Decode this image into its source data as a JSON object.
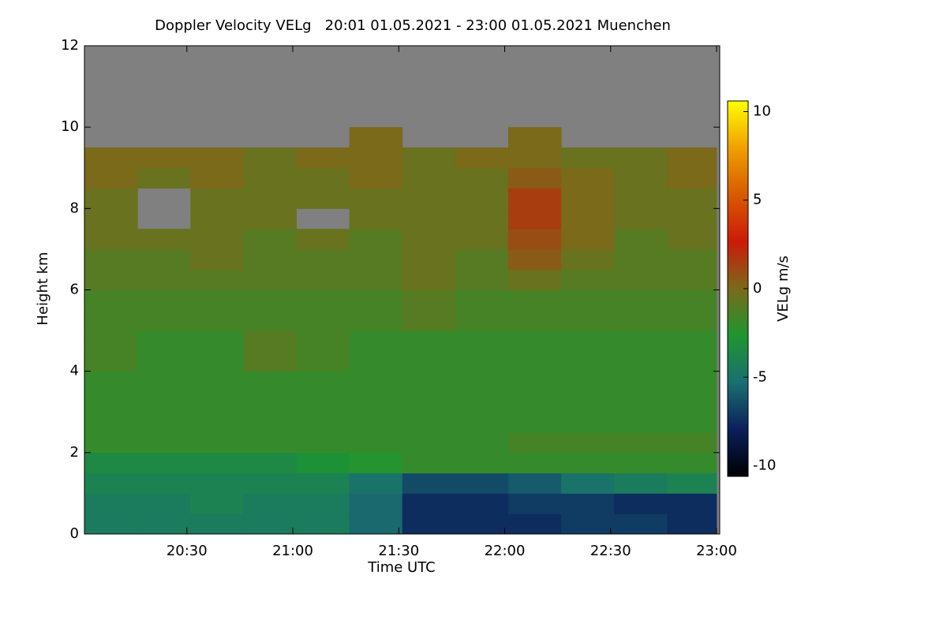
{
  "chart_data": {
    "type": "heatmap",
    "title": "Doppler Velocity VELg   20:01 01.05.2021 - 23:00 01.05.2021 Muenchen",
    "x_label": "Time UTC",
    "y_label": "Height km",
    "colorbar_label": "VELg m/s",
    "xlim": [
      1201,
      1380
    ],
    "xticks": [
      {
        "value": 1230,
        "label": "20:30"
      },
      {
        "value": 1260,
        "label": "21:00"
      },
      {
        "value": 1290,
        "label": "21:30"
      },
      {
        "value": 1320,
        "label": "22:00"
      },
      {
        "value": 1350,
        "label": "22:30"
      },
      {
        "value": 1380,
        "label": "23:00"
      }
    ],
    "ylim": [
      0,
      12
    ],
    "yticks": [
      0,
      2,
      4,
      6,
      8,
      10,
      12
    ],
    "zlim": [
      -10.6,
      10.6
    ],
    "zticks": [
      -10,
      -5,
      0,
      5,
      10
    ],
    "colors": [
      "#000000",
      "#0b1f5c",
      "#1a6f70",
      "#1e9630",
      "#7a6a1a",
      "#cc1a08",
      "#d85a00",
      "#f0a000",
      "#ffff00"
    ],
    "missing_color": "#808080",
    "xbins": [
      1201,
      1216,
      1231,
      1246,
      1261,
      1276,
      1291,
      1306,
      1321,
      1336,
      1351,
      1366,
      1380
    ],
    "ybins": [
      0,
      0.5,
      1,
      1.5,
      2,
      2.5,
      3,
      3.5,
      4,
      4.5,
      5,
      5.5,
      6,
      6.5,
      7,
      7.5,
      8,
      8.5,
      9,
      9.5,
      10,
      10.5,
      11,
      11.5,
      12
    ],
    "z": [
      [
        -4.5,
        -4.5,
        -4.5,
        -4.5,
        -4.5,
        -5.5,
        -7.5,
        -7.5,
        -7.5,
        -7,
        -7,
        -7.5
      ],
      [
        -4.5,
        -4.5,
        -4,
        -4.5,
        -4.5,
        -5.5,
        -7.5,
        -7.5,
        -7,
        -7,
        -7.5,
        -7.5
      ],
      [
        -4,
        -4,
        -4,
        -4,
        -4,
        -5,
        -6.5,
        -6.5,
        -6,
        -5,
        -4.5,
        -4
      ],
      [
        -3.5,
        -3.5,
        -3.5,
        -3.5,
        -3,
        -2.5,
        -2,
        -2,
        -2,
        -2,
        -2,
        -2
      ],
      [
        -2,
        -2,
        -2,
        -2,
        -2,
        -2,
        -2,
        -2,
        -1.5,
        -1.5,
        -1.5,
        -1.5
      ],
      [
        -2,
        -2,
        -2,
        -2,
        -2,
        -2,
        -2,
        -2,
        -2,
        -2,
        -2,
        -2
      ],
      [
        -2,
        -2,
        -2,
        -2,
        -2,
        -2,
        -2,
        -2,
        -2,
        -2,
        -2,
        -2
      ],
      [
        -2,
        -2,
        -2,
        -2,
        -2,
        -2,
        -2,
        -2,
        -2,
        -2,
        -2,
        -2
      ],
      [
        -1.5,
        -2,
        -2,
        -1,
        -1.5,
        -2,
        -2,
        -2,
        -2,
        -2,
        -2,
        -2
      ],
      [
        -1.5,
        -2,
        -2,
        -1,
        -1.5,
        -2,
        -2,
        -2,
        -2,
        -2,
        -2,
        -2
      ],
      [
        -1.5,
        -1.5,
        -1.5,
        -1.5,
        -1.5,
        -1.5,
        -1,
        -1.5,
        -1.5,
        -1.5,
        -1.5,
        -1.5
      ],
      [
        -1.5,
        -1.5,
        -1.5,
        -1.5,
        -1.5,
        -1.5,
        -1,
        -1.5,
        -1.5,
        -1.5,
        -1.5,
        -1.5
      ],
      [
        -1,
        -1,
        -1,
        -1,
        -1,
        -1,
        -0.5,
        -1,
        -0.5,
        -1,
        -1,
        -1
      ],
      [
        -1,
        -1,
        -0.5,
        -1,
        -1,
        -1,
        -0.5,
        -1,
        0.5,
        -0.5,
        -1,
        -1
      ],
      [
        -0.5,
        -0.5,
        -0.5,
        -1,
        -0.5,
        -1,
        -0.5,
        -0.5,
        1,
        0,
        -1,
        -0.5
      ],
      [
        -0.5,
        null,
        -0.5,
        -0.5,
        null,
        -0.5,
        -0.5,
        -0.5,
        1.5,
        0,
        -0.5,
        -0.5
      ],
      [
        -0.5,
        null,
        -0.5,
        -0.5,
        -0.5,
        -0.5,
        -0.5,
        -0.5,
        1.5,
        0,
        -0.5,
        -0.5
      ],
      [
        0,
        -0.5,
        0,
        -0.5,
        -0.5,
        0,
        -0.5,
        -0.5,
        0.5,
        0,
        -0.5,
        0
      ],
      [
        0,
        0,
        0,
        -0.5,
        0,
        0,
        -0.5,
        0,
        0,
        -0.5,
        -0.5,
        0
      ],
      [
        null,
        null,
        null,
        null,
        null,
        0,
        null,
        null,
        0,
        null,
        null,
        null
      ],
      [
        null,
        null,
        null,
        null,
        null,
        null,
        null,
        null,
        null,
        null,
        null,
        null
      ],
      [
        null,
        null,
        null,
        null,
        null,
        null,
        null,
        null,
        null,
        null,
        null,
        null
      ],
      [
        null,
        null,
        null,
        null,
        null,
        null,
        null,
        null,
        null,
        null,
        null,
        null
      ],
      [
        null,
        null,
        null,
        null,
        null,
        null,
        null,
        null,
        null,
        null,
        null,
        null
      ]
    ]
  }
}
